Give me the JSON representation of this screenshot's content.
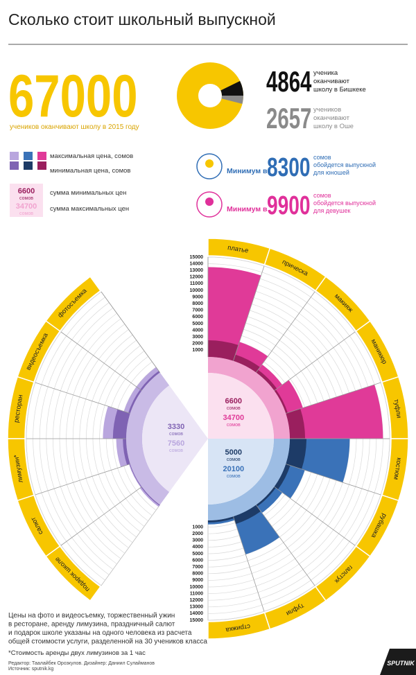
{
  "title": "Сколько стоит школьный выпускной",
  "chart_data": [
    {
      "type": "donut",
      "total": 67000,
      "total_label": "учеников оканчивают школу в 2015 году",
      "total_color": "#f7c600",
      "values": [
        4864,
        2657
      ],
      "colors": [
        "#111111",
        "#8a8a8a"
      ],
      "labels": [
        [
          "ученика",
          "оканчивают",
          "школу в Бишкеке"
        ],
        [
          "учеников",
          "оканчивают",
          "школу в Оше"
        ]
      ]
    },
    {
      "type": "radial-bar",
      "rlim": [
        0,
        15000
      ],
      "rticks": [
        1000,
        2000,
        3000,
        4000,
        5000,
        6000,
        7000,
        8000,
        9000,
        10000,
        11000,
        12000,
        13000,
        14000,
        15000
      ],
      "unit": "сомов",
      "ring_color": "#f7c600",
      "legend": {
        "max": "максимальная цена, сомов",
        "min": "минимальная цена, сомов",
        "sum_min": "сумма минимальных цен",
        "sum_max": "сумма максимальных цен"
      },
      "groups": [
        {
          "categories": [
            "платье",
            "прическа",
            "макияж",
            "маникюр",
            "туфли"
          ],
          "min": [
            2500,
            1000,
            500,
            300,
            2300
          ],
          "max": [
            13500,
            3000,
            1500,
            2700,
            14000
          ],
          "sum_min": 6600,
          "sum_max": 34700,
          "color_max": "#e03a98",
          "color_min": "#9a1f5e",
          "inner_color": "#fbe0ef",
          "band_color": "#f1a3cf"
        },
        {
          "categories": [
            "костюм",
            "рубашка",
            "галстук",
            "туфли",
            "стрижка"
          ],
          "min": [
            2500,
            700,
            300,
            1200,
            300
          ],
          "max": [
            9000,
            3000,
            1500,
            6000,
            600
          ],
          "sum_min": 5000,
          "sum_max": 20100,
          "color_max": "#3a72b8",
          "color_min": "#1d3b67",
          "inner_color": "#d7e4f5",
          "band_color": "#9dbde4"
        },
        {
          "categories": [
            "фотосъемка",
            "видеосъемка",
            "ресторан",
            "лимузин*",
            "салют",
            "подарок школе"
          ],
          "min": [
            300,
            300,
            2000,
            500,
            100,
            130
          ],
          "max": [
            1000,
            1000,
            3500,
            1500,
            200,
            360
          ],
          "sum_min": 3330,
          "sum_max": 7560,
          "color_max": "#b9a6de",
          "color_min": "#7f63b3",
          "inner_color": "#ece6f6",
          "band_color": "#c9bbe6"
        }
      ]
    }
  ],
  "summary": [
    {
      "prefix": "Минимум в",
      "value": 8300,
      "text": [
        "сомов",
        "обойдется выпускной",
        "для юношей"
      ],
      "color": "#2f6db5"
    },
    {
      "prefix": "Минимум в",
      "value": 9900,
      "text": [
        "сомов",
        "обойдется выпускной",
        "для девушек"
      ],
      "color": "#e0309a"
    }
  ],
  "note": [
    "Цены на фото и видеосъемку, торжественный ужин",
    "в ресторане, аренду лимузина, праздничный салют",
    "и подарок школе указаны на одного человека из расчета",
    "общей стоимости услуги, разделенной на 30 учеников класса"
  ],
  "footnote": "*Стоимость аренды двух лимузинов за 1 час",
  "credits": [
    "Редактор: Таалайбек Орозкулов. Дизайнер: Даниил Сулайманов",
    "Источник: sputnik.kg"
  ],
  "logo": "SPUTNIK"
}
